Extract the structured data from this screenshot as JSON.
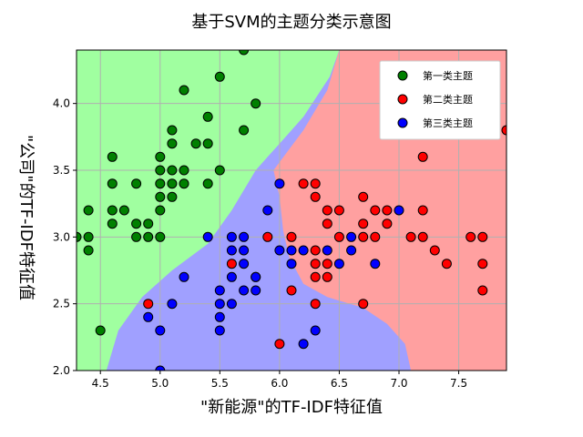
{
  "chart_data": {
    "type": "scatter",
    "title": "基于SVM的主题分类示意图",
    "xlabel": "\"新能源\"的TF-IDF特征值",
    "ylabel": "\"公司\"的TF-IDF特征值",
    "xlim": [
      4.3,
      7.9
    ],
    "ylim": [
      2.0,
      4.4
    ],
    "x_ticks": [
      "4.5",
      "5.0",
      "5.5",
      "6.0",
      "6.5",
      "7.0",
      "7.5"
    ],
    "y_ticks": [
      "2.0",
      "2.5",
      "3.0",
      "3.5",
      "4.0"
    ],
    "grid": true,
    "legend_position": "top-right",
    "region_colors": {
      "series1": "#a0ffa0",
      "series2": "#ffa0a0",
      "series3": "#a0a0ff"
    },
    "series": [
      {
        "name": "第一类主题",
        "color": "#008000",
        "points": [
          [
            4.3,
            3.0
          ],
          [
            4.4,
            2.9
          ],
          [
            4.4,
            3.0
          ],
          [
            4.4,
            3.2
          ],
          [
            4.5,
            2.3
          ],
          [
            4.6,
            3.1
          ],
          [
            4.6,
            3.2
          ],
          [
            4.6,
            3.4
          ],
          [
            4.6,
            3.6
          ],
          [
            4.7,
            3.2
          ],
          [
            4.8,
            3.0
          ],
          [
            4.8,
            3.1
          ],
          [
            4.8,
            3.4
          ],
          [
            4.9,
            3.0
          ],
          [
            4.9,
            3.1
          ],
          [
            5.0,
            3.0
          ],
          [
            5.0,
            3.2
          ],
          [
            5.0,
            3.3
          ],
          [
            5.0,
            3.4
          ],
          [
            5.0,
            3.5
          ],
          [
            5.0,
            3.6
          ],
          [
            5.1,
            3.3
          ],
          [
            5.1,
            3.4
          ],
          [
            5.1,
            3.5
          ],
          [
            5.1,
            3.7
          ],
          [
            5.1,
            3.8
          ],
          [
            5.2,
            3.4
          ],
          [
            5.2,
            3.5
          ],
          [
            5.2,
            4.1
          ],
          [
            5.3,
            3.7
          ],
          [
            5.4,
            3.4
          ],
          [
            5.4,
            3.7
          ],
          [
            5.4,
            3.9
          ],
          [
            5.5,
            3.5
          ],
          [
            5.5,
            4.2
          ],
          [
            5.7,
            3.8
          ],
          [
            5.7,
            4.4
          ],
          [
            5.8,
            4.0
          ]
        ]
      },
      {
        "name": "第二类主题",
        "color": "#ff0000",
        "points": [
          [
            4.9,
            2.5
          ],
          [
            5.6,
            2.8
          ],
          [
            5.8,
            2.7
          ],
          [
            5.9,
            3.0
          ],
          [
            6.0,
            2.2
          ],
          [
            6.1,
            2.6
          ],
          [
            6.1,
            3.0
          ],
          [
            6.2,
            3.4
          ],
          [
            6.3,
            2.5
          ],
          [
            6.3,
            2.7
          ],
          [
            6.3,
            2.8
          ],
          [
            6.3,
            2.9
          ],
          [
            6.3,
            3.3
          ],
          [
            6.3,
            3.4
          ],
          [
            6.4,
            2.7
          ],
          [
            6.4,
            2.8
          ],
          [
            6.4,
            3.1
          ],
          [
            6.4,
            3.2
          ],
          [
            6.5,
            3.0
          ],
          [
            6.5,
            3.2
          ],
          [
            6.7,
            2.5
          ],
          [
            6.7,
            3.0
          ],
          [
            6.7,
            3.1
          ],
          [
            6.7,
            3.3
          ],
          [
            6.8,
            3.0
          ],
          [
            6.8,
            3.2
          ],
          [
            6.9,
            3.1
          ],
          [
            6.9,
            3.2
          ],
          [
            7.1,
            3.0
          ],
          [
            7.2,
            3.0
          ],
          [
            7.2,
            3.2
          ],
          [
            7.2,
            3.6
          ],
          [
            7.3,
            2.9
          ],
          [
            7.4,
            2.8
          ],
          [
            7.6,
            3.0
          ],
          [
            7.7,
            2.6
          ],
          [
            7.7,
            2.8
          ],
          [
            7.7,
            3.0
          ],
          [
            7.9,
            3.8
          ]
        ]
      },
      {
        "name": "第三类主题",
        "color": "#0000ff",
        "points": [
          [
            4.9,
            2.4
          ],
          [
            5.0,
            2.0
          ],
          [
            5.0,
            2.3
          ],
          [
            5.1,
            2.5
          ],
          [
            5.2,
            2.7
          ],
          [
            5.4,
            3.0
          ],
          [
            5.5,
            2.3
          ],
          [
            5.5,
            2.4
          ],
          [
            5.5,
            2.5
          ],
          [
            5.5,
            2.6
          ],
          [
            5.6,
            2.5
          ],
          [
            5.6,
            2.7
          ],
          [
            5.6,
            2.9
          ],
          [
            5.6,
            3.0
          ],
          [
            5.7,
            2.6
          ],
          [
            5.7,
            2.8
          ],
          [
            5.7,
            2.9
          ],
          [
            5.7,
            3.0
          ],
          [
            5.8,
            2.6
          ],
          [
            5.8,
            2.7
          ],
          [
            5.9,
            3.2
          ],
          [
            6.0,
            2.9
          ],
          [
            6.0,
            3.4
          ],
          [
            6.1,
            2.8
          ],
          [
            6.1,
            2.9
          ],
          [
            6.2,
            2.2
          ],
          [
            6.2,
            2.9
          ],
          [
            6.3,
            2.3
          ],
          [
            6.4,
            2.9
          ],
          [
            6.5,
            2.8
          ],
          [
            6.6,
            2.9
          ],
          [
            6.6,
            3.0
          ],
          [
            6.8,
            2.8
          ],
          [
            7.0,
            3.2
          ]
        ]
      }
    ]
  }
}
